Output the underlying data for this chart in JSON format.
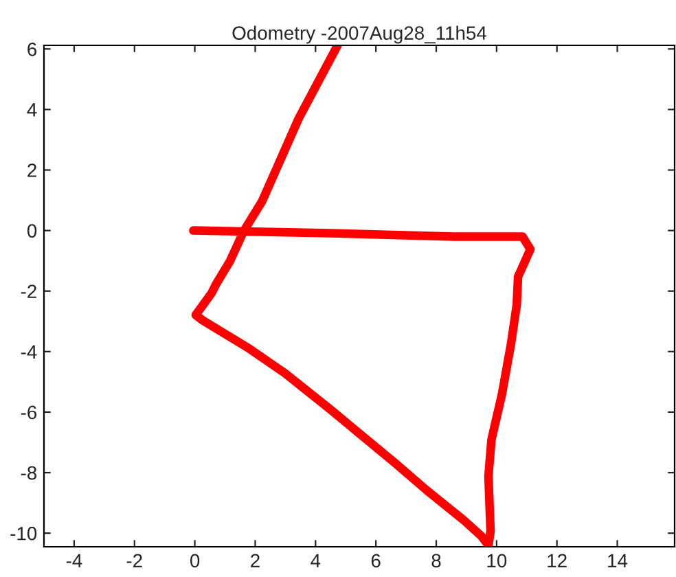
{
  "chart_data": {
    "type": "line",
    "title": "Odometry -2007Aug28_11h54",
    "series": [
      {
        "color": "#ff0000",
        "x": [
          -0.05,
          4.5,
          8.6,
          10.86,
          11.12,
          10.71,
          10.67,
          10.48,
          10.18,
          9.83,
          9.73,
          9.8,
          9.73,
          9.5,
          8.9,
          7.68,
          6.62,
          4.5,
          2.98,
          1.77,
          0.26,
          0.03,
          0.56,
          0.71,
          1.17,
          1.62,
          2.23,
          3.44,
          4.73
        ],
        "values": [
          0,
          -0.09,
          -0.2,
          -0.2,
          -0.62,
          -1.53,
          -2.44,
          -3.73,
          -5.4,
          -6.91,
          -8.12,
          -9.94,
          -10.4,
          -10.1,
          -9.56,
          -8.58,
          -7.67,
          -5.92,
          -4.71,
          -3.88,
          -2.97,
          -2.79,
          -2.06,
          -1.76,
          -1.0,
          -0.02,
          0.97,
          3.7,
          6.12
        ]
      }
    ],
    "xlim": [
      -5,
      15.9
    ],
    "ylim": [
      -10.45,
      6.12
    ],
    "xticks": [
      -4,
      -2,
      0,
      2,
      4,
      6,
      8,
      10,
      12,
      14
    ],
    "yticks": [
      -10,
      -8,
      -6,
      -4,
      -2,
      0,
      2,
      4,
      6
    ],
    "grid": false,
    "legend": false,
    "marker": "none",
    "line_style": "solid"
  }
}
